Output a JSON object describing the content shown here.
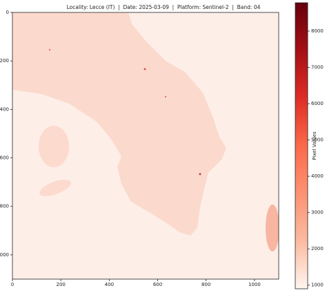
{
  "chart_data": {
    "type": "image",
    "title": "Locality: Lecce (IT)  |  Date: 2025-03-09  |  Platform: Sentinel-2  |  Band: 04",
    "xlim": [
      0,
      1100
    ],
    "xticks": [
      0,
      200,
      400,
      600,
      800,
      1000
    ],
    "ylim": [
      1100,
      0
    ],
    "yticks": [
      0,
      200,
      400,
      600,
      800,
      1000
    ],
    "colorbar": {
      "label": "Pixel Values",
      "lim": [
        900,
        8780
      ],
      "ticks": [
        1000,
        2000,
        3000,
        4000,
        5000,
        6000,
        7000,
        8000
      ],
      "cmap": "Reds",
      "colors": [
        "#fff5f0",
        "#fcbba1",
        "#fc9272",
        "#fb6a4a",
        "#de2d26",
        "#a50f15",
        "#67000d"
      ]
    }
  }
}
